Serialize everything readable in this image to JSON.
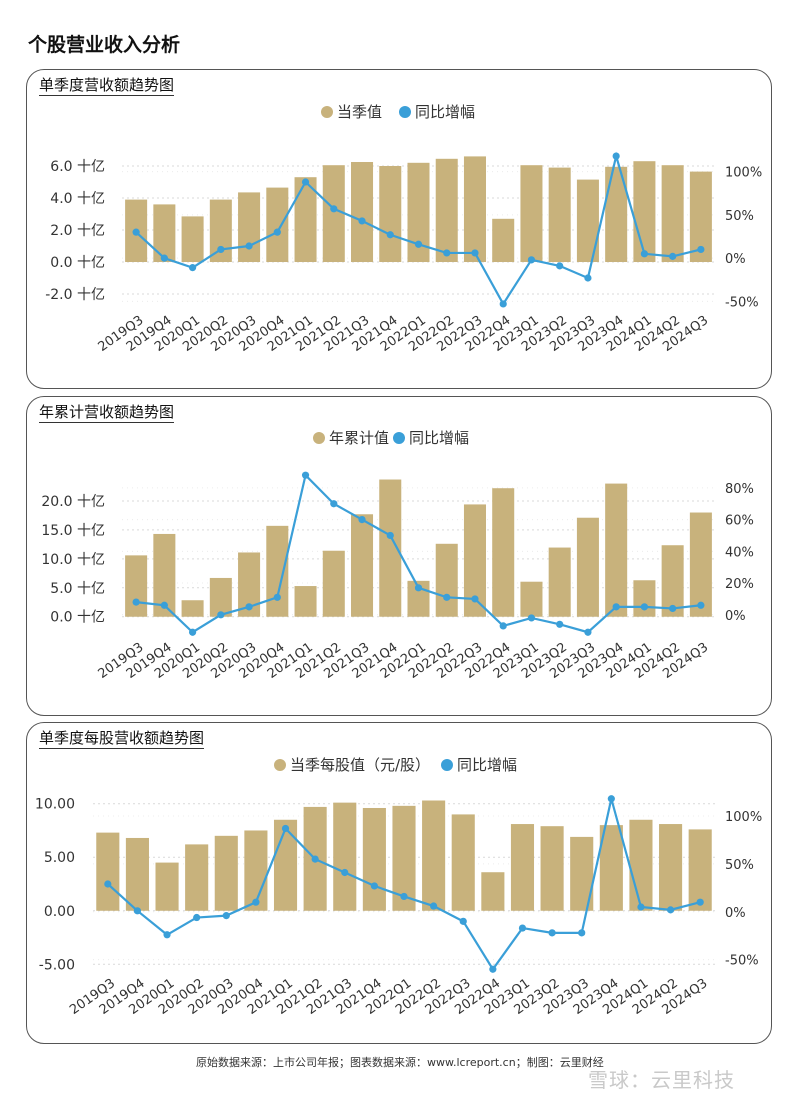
{
  "page_title": "个股营业收入分析",
  "footer": "原始数据来源：上市公司年报；图表数据来源：www.lcreport.cn；制图：云里财经",
  "watermark": "雪球：云里科技",
  "colors": {
    "bar": "#c8b27c",
    "line": "#3a9fd8",
    "grid": "#d9d9d9",
    "axis_text": "#333333"
  },
  "chart_data": [
    {
      "type": "bar",
      "title": "单季度营收额趋势图",
      "categories": [
        "2019Q3",
        "2019Q4",
        "2020Q1",
        "2020Q2",
        "2020Q3",
        "2020Q4",
        "2021Q1",
        "2021Q2",
        "2021Q3",
        "2021Q4",
        "2022Q1",
        "2022Q2",
        "2022Q3",
        "2022Q4",
        "2023Q1",
        "2023Q2",
        "2023Q3",
        "2023Q4",
        "2024Q1",
        "2024Q2",
        "2024Q3"
      ],
      "series": [
        {
          "name": "当季值",
          "type": "bar",
          "axis": "left",
          "values": [
            3.9,
            3.6,
            2.85,
            3.9,
            4.35,
            4.65,
            5.3,
            6.05,
            6.25,
            6.0,
            6.2,
            6.45,
            6.6,
            2.7,
            6.05,
            5.9,
            5.15,
            5.95,
            6.3,
            6.05,
            5.65
          ]
        },
        {
          "name": "同比增幅",
          "type": "line",
          "axis": "right",
          "values": [
            30,
            0,
            -11,
            10,
            14,
            30,
            88,
            57,
            43,
            27,
            16,
            6,
            6,
            -53,
            -2,
            -9,
            -23,
            118,
            5,
            2,
            10
          ]
        }
      ],
      "y_left": {
        "min": -3.0,
        "max": 7.0,
        "ticks": [
          -2.0,
          0.0,
          2.0,
          4.0,
          6.0
        ],
        "tick_labels": [
          "-2.0 十亿",
          "0.0 十亿",
          "2.0 十亿",
          "4.0 十亿",
          "6.0 十亿"
        ]
      },
      "y_right": {
        "min": -60,
        "max": 125,
        "ticks": [
          -50,
          0,
          50,
          100
        ],
        "tick_labels": [
          "-50%",
          "0%",
          "50%",
          "100%"
        ]
      },
      "legend_position": "top-center",
      "grid": true
    },
    {
      "type": "bar",
      "title": "年累计营收额趋势图",
      "categories": [
        "2019Q3",
        "2019Q4",
        "2020Q1",
        "2020Q2",
        "2020Q3",
        "2020Q4",
        "2021Q1",
        "2021Q2",
        "2021Q3",
        "2021Q4",
        "2022Q1",
        "2022Q2",
        "2022Q3",
        "2022Q4",
        "2023Q1",
        "2023Q2",
        "2023Q3",
        "2023Q4",
        "2024Q1",
        "2024Q2",
        "2024Q3"
      ],
      "series": [
        {
          "name": "年累计值",
          "type": "bar",
          "axis": "left",
          "values": [
            10.6,
            14.3,
            2.85,
            6.7,
            11.1,
            15.7,
            5.3,
            11.4,
            17.7,
            23.7,
            6.2,
            12.6,
            19.4,
            22.2,
            6.05,
            11.95,
            17.1,
            23.0,
            6.3,
            12.35,
            18.0
          ]
        },
        {
          "name": "同比增幅",
          "type": "line",
          "axis": "right",
          "values": [
            8,
            6,
            -11,
            0,
            5,
            11,
            88,
            70,
            60,
            50,
            17,
            11,
            10,
            -7,
            -2,
            -6,
            -11,
            5,
            5,
            4,
            6
          ]
        }
      ],
      "y_left": {
        "min": -3.5,
        "max": 25.0,
        "ticks": [
          0.0,
          5.0,
          10.0,
          15.0,
          20.0
        ],
        "tick_labels": [
          "0.0 十亿",
          "5.0 十亿",
          "10.0 十亿",
          "15.0 十亿",
          "20.0 十亿"
        ]
      },
      "y_right": {
        "min": -14,
        "max": 90,
        "ticks": [
          0,
          20,
          40,
          60,
          80
        ],
        "tick_labels": [
          "0%",
          "20%",
          "40%",
          "60%",
          "80%"
        ]
      },
      "legend_position": "top-center",
      "grid": true
    },
    {
      "type": "bar",
      "title": "单季度每股营收额趋势图",
      "categories": [
        "2019Q3",
        "2019Q4",
        "2020Q1",
        "2020Q2",
        "2020Q3",
        "2020Q4",
        "2021Q1",
        "2021Q2",
        "2021Q3",
        "2021Q4",
        "2022Q1",
        "2022Q2",
        "2022Q3",
        "2022Q4",
        "2023Q1",
        "2023Q2",
        "2023Q3",
        "2023Q4",
        "2024Q1",
        "2024Q2",
        "2024Q3"
      ],
      "series": [
        {
          "name": "当季每股值（元/股）",
          "type": "bar",
          "axis": "left",
          "values": [
            7.3,
            6.8,
            4.5,
            6.2,
            7.0,
            7.5,
            8.5,
            9.7,
            10.1,
            9.6,
            9.8,
            10.3,
            9.0,
            3.6,
            8.1,
            7.9,
            6.9,
            8.0,
            8.5,
            8.1,
            7.6
          ]
        },
        {
          "name": "同比增幅",
          "type": "line",
          "axis": "right",
          "values": [
            29,
            1,
            -24,
            -6,
            -4,
            10,
            87,
            55,
            41,
            27,
            16,
            6,
            -10,
            -60,
            -17,
            -22,
            -22,
            118,
            5,
            2,
            10
          ]
        }
      ],
      "y_left": {
        "min": -6.0,
        "max": 11.0,
        "ticks": [
          -5.0,
          0.0,
          5.0,
          10.0
        ],
        "tick_labels": [
          "-5.00",
          "0.00",
          "5.00",
          "10.00"
        ]
      },
      "y_right": {
        "min": -66,
        "max": 124,
        "ticks": [
          -50,
          0,
          50,
          100
        ],
        "tick_labels": [
          "-50%",
          "0%",
          "50%",
          "100%"
        ]
      },
      "legend_position": "top-center",
      "grid": true
    }
  ]
}
